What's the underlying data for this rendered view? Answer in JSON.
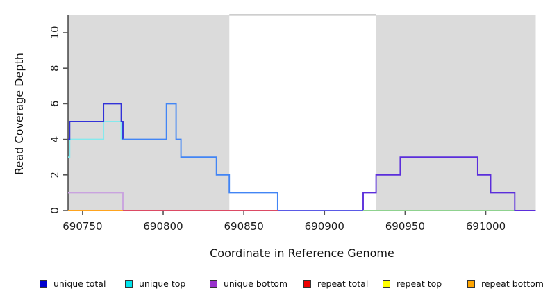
{
  "figure": {
    "background": "#ffffff",
    "plot_bg": "#ffffff"
  },
  "chart_data": {
    "type": "line",
    "subtype": "step-coverage",
    "title": "",
    "xlabel": "Coordinate in Reference Genome",
    "ylabel": "Read Coverage Depth",
    "xlim": [
      690741,
      691031
    ],
    "ylim": [
      0,
      11
    ],
    "x_ticks": [
      "690750",
      "690800",
      "690850",
      "690900",
      "690950",
      "691000"
    ],
    "x_tick_values": [
      690750,
      690800,
      690850,
      690900,
      690950,
      691000
    ],
    "y_ticks": [
      "0",
      "2",
      "4",
      "6",
      "8",
      "10"
    ],
    "y_tick_values": [
      0,
      2,
      4,
      6,
      8,
      10
    ],
    "grid": "off",
    "legend_position": "bottom",
    "shaded_regions": [
      {
        "name": "gray-region-left",
        "x0": 690741,
        "x1": 690841,
        "color": "#dbdbdb"
      },
      {
        "name": "gray-region-right",
        "x0": 690932,
        "x1": 691031,
        "color": "#dbdbdb"
      }
    ],
    "top_rule": {
      "x0": 690841,
      "x1": 690932,
      "y": 11,
      "color": "#7d7d7d"
    },
    "series": [
      {
        "name": "unique total",
        "color": "#0000cd",
        "steps": [
          [
            690741,
            4
          ],
          [
            690742,
            5
          ],
          [
            690763,
            6
          ],
          [
            690774,
            5
          ],
          [
            690775,
            4
          ],
          [
            690802,
            6
          ],
          [
            690808,
            4
          ],
          [
            690811,
            3
          ],
          [
            690833,
            2
          ],
          [
            690841,
            1
          ],
          [
            690871,
            0
          ],
          [
            690924,
            1
          ],
          [
            690932,
            2
          ],
          [
            690947,
            3
          ],
          [
            690995,
            2
          ],
          [
            691003,
            1
          ],
          [
            691018,
            0
          ],
          [
            691031,
            0
          ]
        ]
      },
      {
        "name": "unique top",
        "color": "#00e5ee",
        "steps": [
          [
            690741,
            3
          ],
          [
            690742,
            4
          ],
          [
            690763,
            5
          ],
          [
            690774,
            4
          ],
          [
            690802,
            6
          ],
          [
            690808,
            4
          ],
          [
            690811,
            3
          ],
          [
            690833,
            2
          ],
          [
            690841,
            1
          ],
          [
            690871,
            0
          ],
          [
            691031,
            0
          ]
        ]
      },
      {
        "name": "unique bottom",
        "color": "#9932cc",
        "steps": [
          [
            690741,
            1
          ],
          [
            690775,
            0
          ],
          [
            690924,
            1
          ],
          [
            690932,
            2
          ],
          [
            690947,
            3
          ],
          [
            690995,
            2
          ],
          [
            691003,
            1
          ],
          [
            691018,
            0
          ],
          [
            691031,
            0
          ]
        ]
      },
      {
        "name": "repeat total",
        "color": "#ee0000",
        "steps": [
          [
            690741,
            0
          ],
          [
            691031,
            0
          ]
        ]
      },
      {
        "name": "repeat top",
        "color": "#ffff00",
        "steps": [
          [
            690741,
            0
          ],
          [
            691031,
            0
          ]
        ]
      },
      {
        "name": "repeat bottom",
        "color": "#ffa500",
        "steps": [
          [
            690741,
            0
          ],
          [
            691031,
            0
          ]
        ]
      }
    ],
    "render_segments": [
      {
        "name": "unique-top-line",
        "color": "#85e9ed",
        "points": [
          [
            690741,
            3
          ],
          [
            690742,
            3
          ],
          [
            690742,
            4
          ],
          [
            690763,
            4
          ],
          [
            690763,
            5
          ],
          [
            690774,
            5
          ],
          [
            690774,
            4
          ],
          [
            690775,
            4
          ]
        ]
      },
      {
        "name": "unique-bottom-line",
        "color": "#c9a3df",
        "points": [
          [
            690741,
            1
          ],
          [
            690775,
            1
          ],
          [
            690775,
            0
          ]
        ]
      },
      {
        "name": "repeat-bottom-baseline",
        "color": "#ffa41e",
        "points": [
          [
            690741,
            0
          ],
          [
            690775,
            0
          ]
        ]
      },
      {
        "name": "repeat-total-baseline",
        "color": "#dc4a64",
        "points": [
          [
            690775,
            0
          ],
          [
            690871,
            0
          ]
        ]
      },
      {
        "name": "unique-total-left",
        "color": "#3232d8",
        "points": [
          [
            690741,
            4
          ],
          [
            690742,
            4
          ],
          [
            690742,
            5
          ],
          [
            690763,
            5
          ],
          [
            690763,
            6
          ],
          [
            690774,
            6
          ],
          [
            690774,
            5
          ],
          [
            690775,
            5
          ],
          [
            690775,
            4
          ]
        ]
      },
      {
        "name": "unique-total-mid",
        "color": "#4285f5",
        "points": [
          [
            690775,
            4
          ],
          [
            690802,
            4
          ],
          [
            690802,
            6
          ],
          [
            690808,
            6
          ],
          [
            690808,
            4
          ],
          [
            690811,
            4
          ],
          [
            690811,
            3
          ],
          [
            690833,
            3
          ],
          [
            690833,
            2
          ],
          [
            690841,
            2
          ],
          [
            690841,
            1
          ],
          [
            690871,
            1
          ],
          [
            690871,
            0
          ]
        ]
      },
      {
        "name": "zero-gap-line",
        "color": "#5a5ae6",
        "points": [
          [
            690871,
            0
          ],
          [
            690924,
            0
          ]
        ]
      },
      {
        "name": "zero-green-line",
        "color": "#8fd28f",
        "points": [
          [
            690924,
            0
          ],
          [
            691018,
            0
          ]
        ]
      },
      {
        "name": "unique-total-right",
        "color": "#5b2edb",
        "points": [
          [
            690924,
            0
          ],
          [
            690924,
            1
          ],
          [
            690932,
            1
          ],
          [
            690932,
            2
          ],
          [
            690947,
            2
          ],
          [
            690947,
            3
          ],
          [
            690995,
            3
          ],
          [
            690995,
            2
          ],
          [
            691003,
            2
          ],
          [
            691003,
            1
          ],
          [
            691018,
            1
          ],
          [
            691018,
            0
          ],
          [
            691031,
            0
          ]
        ]
      }
    ]
  },
  "legend": {
    "items": [
      {
        "label": "unique total",
        "swatch": "#0000cd"
      },
      {
        "label": "unique top",
        "swatch": "#00e5ee"
      },
      {
        "label": "unique bottom",
        "swatch": "#9932cc"
      },
      {
        "label": "repeat total",
        "swatch": "#ee0000"
      },
      {
        "label": "repeat top",
        "swatch": "#ffff00"
      },
      {
        "label": "repeat bottom",
        "swatch": "#ffa500"
      }
    ]
  }
}
